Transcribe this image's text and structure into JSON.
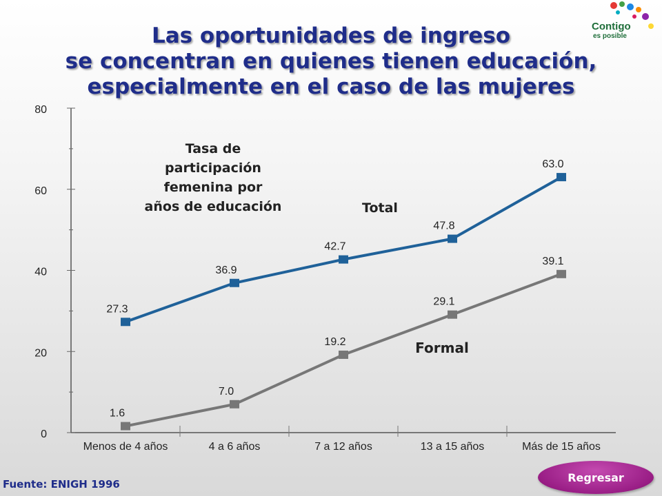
{
  "title_lines": [
    "Las oportunidades de ingreso",
    "se concentran en quienes tienen educación,",
    "especialmente en el caso de las mujeres"
  ],
  "logo": {
    "text": "Contigo",
    "sub": "es posible",
    "icon": "hands-logo-icon"
  },
  "source": "Fuente: ENIGH 1996",
  "button": {
    "label": "Regresar"
  },
  "colors": {
    "total": "#1f6199",
    "formal": "#777777",
    "title": "#1f2d8a",
    "button": "#9a1e86"
  },
  "chart_data": {
    "type": "line",
    "annotation_lines": [
      "Tasa de",
      "participación",
      "femenina por",
      "años de educación"
    ],
    "categories": [
      "Menos de 4 años",
      "4 a 6 años",
      "7 a 12 años",
      "13 a 15 años",
      "Más de 15 años"
    ],
    "series": [
      {
        "name": "Total",
        "values": [
          27.3,
          36.9,
          42.7,
          47.8,
          63.0
        ],
        "labels": [
          "27.3",
          "36.9",
          "42.7",
          "47.8",
          "63.0"
        ]
      },
      {
        "name": "Formal",
        "values": [
          1.6,
          7.0,
          19.2,
          29.1,
          39.1
        ],
        "labels": [
          "1.6",
          "7.0",
          "19.2",
          "29.1",
          "39.1"
        ]
      }
    ],
    "y_ticks": [
      {
        "value": 0,
        "label": "0"
      },
      {
        "value": 20,
        "label": "20"
      },
      {
        "value": 40,
        "label": "40"
      },
      {
        "value": 60,
        "label": "60"
      },
      {
        "value": 80,
        "label": "80"
      }
    ],
    "ylim": [
      0,
      80
    ],
    "grid": false,
    "legend": "none"
  }
}
